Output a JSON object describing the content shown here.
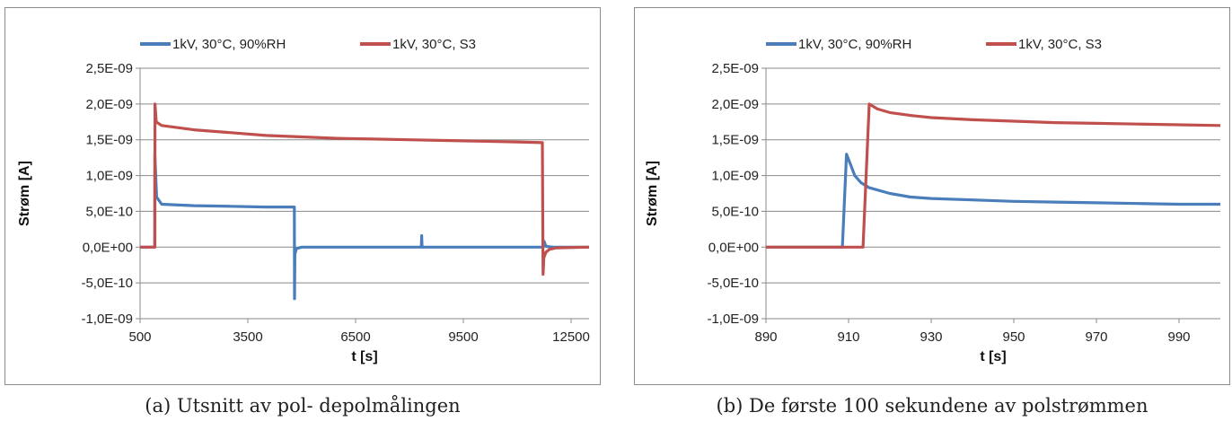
{
  "chart_data": [
    {
      "type": "line",
      "xlabel": "t [s]",
      "ylabel": "Strøm [A]",
      "xlim": [
        500,
        13000
      ],
      "ylim": [
        -1e-09,
        2.5e-09
      ],
      "x_ticks": [
        500,
        3500,
        6500,
        9500,
        12500
      ],
      "x_tick_labels": [
        "500",
        "3500",
        "6500",
        "9500",
        "12500"
      ],
      "y_ticks": [
        2.5e-09,
        2e-09,
        1.5e-09,
        1e-09,
        5e-10,
        0,
        -5e-10,
        -1e-09
      ],
      "y_tick_labels": [
        "2,5E-09",
        "2,0E-09",
        "1,5E-09",
        "1,0E-09",
        "5,0E-10",
        "0,0E+00",
        "-5,0E-10",
        "-1,0E-09"
      ],
      "grid": true,
      "legend_position": "top",
      "caption": "(a) Utsnitt av pol- depolmålingen",
      "series": [
        {
          "name": "1kV, 30°C, 90%RH",
          "color": "#4a7ebb",
          "x": [
            500,
            908,
            910,
            960,
            1100,
            2000,
            3000,
            4000,
            4700,
            4795,
            4800,
            4810,
            4850,
            5000,
            6000,
            7000,
            8000,
            8330,
            8340,
            8350,
            8360,
            9000,
            10000,
            11000,
            11700,
            11750,
            11800,
            12000,
            13000
          ],
          "y": [
            0,
            0,
            1.3e-09,
            7e-10,
            6e-10,
            5.8e-10,
            5.7e-10,
            5.6e-10,
            5.6e-10,
            5.6e-10,
            -7.2e-10,
            -1e-10,
            -2e-11,
            0,
            0,
            0,
            0,
            0,
            1.6e-10,
            1e-11,
            0,
            0,
            0,
            0,
            0,
            8e-11,
            1e-11,
            0,
            0
          ]
        },
        {
          "name": "1kV, 30°C, S3",
          "color": "#c0504d",
          "x": [
            500,
            913,
            915,
            950,
            1100,
            2000,
            3000,
            4000,
            5000,
            6000,
            7000,
            8000,
            9000,
            10000,
            11000,
            11700,
            11720,
            11740,
            11800,
            11900,
            12100,
            13000
          ],
          "y": [
            0,
            0,
            2e-09,
            1.75e-09,
            1.7e-09,
            1.64e-09,
            1.6e-09,
            1.56e-09,
            1.54e-09,
            1.52e-09,
            1.51e-09,
            1.5e-09,
            1.49e-09,
            1.48e-09,
            1.47e-09,
            1.46e-09,
            -3.8e-10,
            -1.5e-10,
            -7e-11,
            -3e-11,
            -1e-11,
            0
          ]
        }
      ]
    },
    {
      "type": "line",
      "xlabel": "t [s]",
      "ylabel": "Strøm [A]",
      "xlim": [
        890,
        1000
      ],
      "ylim": [
        -1e-09,
        2.5e-09
      ],
      "x_ticks": [
        890,
        910,
        930,
        950,
        970,
        990
      ],
      "x_tick_labels": [
        "890",
        "910",
        "930",
        "950",
        "970",
        "990"
      ],
      "y_ticks": [
        2.5e-09,
        2e-09,
        1.5e-09,
        1e-09,
        5e-10,
        0,
        -5e-10,
        -1e-09
      ],
      "y_tick_labels": [
        "2,5E-09",
        "2,0E-09",
        "1,5E-09",
        "1,0E-09",
        "5,0E-10",
        "0,0E+00",
        "-5,0E-10",
        "-1,0E-09"
      ],
      "grid": true,
      "legend_position": "top",
      "caption": "(b) De første 100 sekundene av polstrømmen",
      "series": [
        {
          "name": "1kV, 30°C, 90%RH",
          "color": "#4a7ebb",
          "x": [
            890,
            908.5,
            909.5,
            910.5,
            911.5,
            913,
            915,
            920,
            925,
            930,
            940,
            950,
            960,
            970,
            980,
            990,
            1000
          ],
          "y": [
            0,
            0,
            1.3e-09,
            1.15e-09,
            1e-09,
            9e-10,
            8.3e-10,
            7.5e-10,
            7e-10,
            6.8e-10,
            6.6e-10,
            6.4e-10,
            6.3e-10,
            6.2e-10,
            6.1e-10,
            6e-10,
            6e-10
          ]
        },
        {
          "name": "1kV, 30°C, S3",
          "color": "#c0504d",
          "x": [
            890,
            913.5,
            915,
            917,
            920,
            925,
            930,
            940,
            950,
            960,
            970,
            980,
            990,
            1000
          ],
          "y": [
            0,
            0,
            2e-09,
            1.93e-09,
            1.88e-09,
            1.84e-09,
            1.81e-09,
            1.78e-09,
            1.76e-09,
            1.74e-09,
            1.73e-09,
            1.72e-09,
            1.71e-09,
            1.7e-09
          ]
        }
      ]
    }
  ]
}
